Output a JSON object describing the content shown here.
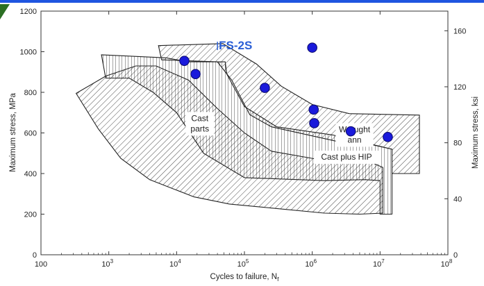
{
  "chart_data": {
    "type": "scatter",
    "title": "",
    "xlabel": "Cycles to failure, N",
    "xlabel_subscript": "f",
    "ylabel_left": "Maximum stress, MPa",
    "ylabel_right": "Maximum stress, ksi",
    "x_scale": "log",
    "xlim": [
      100,
      100000000
    ],
    "x_ticks": [
      100,
      1000,
      10000,
      100000,
      1000000,
      10000000,
      100000000
    ],
    "x_tick_base": "10",
    "x_tick_first_label": "100",
    "x_tick_exponents": [
      "",
      "3",
      "4",
      "5",
      "6",
      "7",
      "8"
    ],
    "ylim_left": [
      0,
      1200
    ],
    "y_ticks_left": [
      "0",
      "200",
      "400",
      "600",
      "800",
      "1000",
      "1200"
    ],
    "y_ticks_left_values": [
      0,
      200,
      400,
      600,
      800,
      1000,
      1200
    ],
    "y_ticks_right": [
      "0",
      "40",
      "80",
      "120",
      "160"
    ],
    "y_ticks_right_values": [
      0,
      40,
      80,
      120,
      160
    ],
    "ksi_to_mpa": 6.895,
    "grid": false,
    "series": [
      {
        "name": "FS-2S",
        "color": "#1a1adb",
        "x": [
          1000000,
          13000,
          19000,
          200000,
          1050000,
          1070000,
          3700000,
          13000000
        ],
        "y": [
          1020,
          955,
          890,
          822,
          715,
          648,
          608,
          580
        ]
      }
    ],
    "regions": [
      {
        "label": "Cast parts",
        "label_lines": [
          "Cast",
          "parts"
        ],
        "label_at": [
          22000,
          645
        ],
        "hatch": "diagonal",
        "outline": [
          [
            330,
            795
          ],
          [
            900,
            880
          ],
          [
            2500,
            930
          ],
          [
            5000,
            930
          ],
          [
            15000,
            860
          ],
          [
            40000,
            720
          ],
          [
            100000,
            600
          ],
          [
            250000,
            510
          ],
          [
            1200000,
            470
          ],
          [
            2600000,
            460
          ],
          [
            7000000,
            455
          ],
          [
            8000000,
            450
          ],
          [
            11000000,
            430
          ],
          [
            11000000,
            205
          ],
          [
            5000000,
            200
          ],
          [
            1500000,
            205
          ],
          [
            250000,
            230
          ],
          [
            60000,
            250
          ],
          [
            18000,
            285
          ],
          [
            4000,
            370
          ],
          [
            1500,
            475
          ],
          [
            700,
            620
          ]
        ]
      },
      {
        "label": "Cast plus HIP",
        "label_lines": [
          "Cast plus HIP"
        ],
        "label_at": [
          3200000,
          480
        ],
        "hatch": "vertical",
        "outline": [
          [
            780,
            985
          ],
          [
            7000,
            970
          ],
          [
            15000,
            950
          ],
          [
            52000,
            950
          ],
          [
            55000,
            890
          ],
          [
            100000,
            730
          ],
          [
            300000,
            630
          ],
          [
            2000000,
            590
          ],
          [
            15000000,
            520
          ],
          [
            15000000,
            200
          ],
          [
            10000000,
            200
          ],
          [
            10000000,
            365
          ],
          [
            6000000,
            370
          ],
          [
            1500000,
            365
          ],
          [
            100000,
            380
          ],
          [
            25000,
            500
          ],
          [
            10000,
            700
          ],
          [
            4500,
            800
          ],
          [
            2000,
            870
          ],
          [
            900,
            870
          ]
        ]
      },
      {
        "label": "Wrought annealed",
        "label_lines": [
          "Wrought",
          "ann"
        ],
        "label_at": [
          4200000,
          590
        ],
        "hatch": "diagonal",
        "outline": [
          [
            5400,
            1030
          ],
          [
            48000,
            1040
          ],
          [
            150000,
            940
          ],
          [
            350000,
            830
          ],
          [
            1000000,
            740
          ],
          [
            3500000,
            695
          ],
          [
            38000000,
            688
          ],
          [
            38000000,
            400
          ],
          [
            15000000,
            400
          ],
          [
            15000000,
            520
          ],
          [
            8000000,
            540
          ],
          [
            3500000,
            560
          ],
          [
            2200000,
            560
          ],
          [
            250000,
            630
          ],
          [
            120000,
            690
          ],
          [
            65000,
            860
          ],
          [
            40000,
            950
          ],
          [
            6000,
            960
          ]
        ]
      }
    ],
    "annotations": [
      {
        "text": "FS-2S",
        "x": 40000,
        "y": 1015
      }
    ]
  }
}
